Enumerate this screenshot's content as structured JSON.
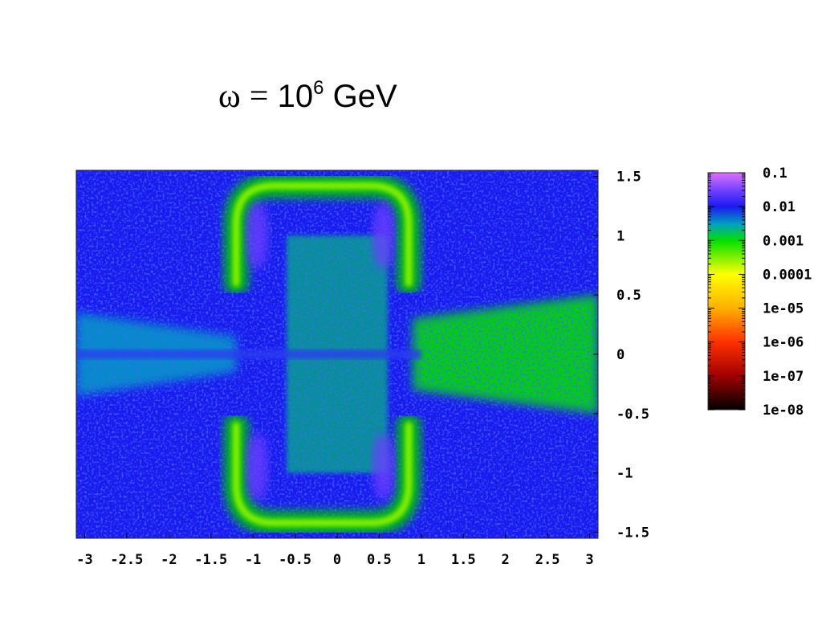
{
  "title": {
    "symbol": "ω",
    "equals": "=",
    "base": "10",
    "exponent": "6",
    "unit": "GeV"
  },
  "chart_data": {
    "type": "heatmap",
    "title": "ω = 10^6 GeV",
    "xlabel": "",
    "ylabel": "",
    "xlim": [
      -3.1,
      3.1
    ],
    "ylim": [
      -1.55,
      1.55
    ],
    "x_ticks": [
      {
        "value": -3,
        "label": "-3"
      },
      {
        "value": -2.5,
        "label": "-2.5"
      },
      {
        "value": -2,
        "label": "-2"
      },
      {
        "value": -1.5,
        "label": "-1.5"
      },
      {
        "value": -1,
        "label": "-1"
      },
      {
        "value": -0.5,
        "label": "-0.5"
      },
      {
        "value": 0,
        "label": "0"
      },
      {
        "value": 0.5,
        "label": "0.5"
      },
      {
        "value": 1,
        "label": "1"
      },
      {
        "value": 1.5,
        "label": "1.5"
      },
      {
        "value": 2,
        "label": "2"
      },
      {
        "value": 2.5,
        "label": "2.5"
      },
      {
        "value": 3,
        "label": "3"
      }
    ],
    "y_ticks": [
      {
        "value": 1.5,
        "label": "1.5"
      },
      {
        "value": 1,
        "label": "1"
      },
      {
        "value": 0.5,
        "label": "0.5"
      },
      {
        "value": 0,
        "label": "0"
      },
      {
        "value": -0.5,
        "label": "-0.5"
      },
      {
        "value": -1,
        "label": "-1"
      },
      {
        "value": -1.5,
        "label": "-1.5"
      }
    ],
    "colorbar": {
      "scale": "log",
      "range": [
        1e-08,
        0.1
      ],
      "ticks": [
        {
          "value": 0.1,
          "label": "0.1"
        },
        {
          "value": 0.01,
          "label": "0.01"
        },
        {
          "value": 0.001,
          "label": "0.001"
        },
        {
          "value": 0.0001,
          "label": "0.0001"
        },
        {
          "value": 1e-05,
          "label": "1e-05"
        },
        {
          "value": 1e-06,
          "label": "1e-06"
        },
        {
          "value": 1e-07,
          "label": "1e-07"
        },
        {
          "value": 1e-08,
          "label": "1e-08"
        }
      ],
      "colormap": [
        {
          "value": 1e-08,
          "color": "#000000"
        },
        {
          "value": 1e-07,
          "color": "#a00000"
        },
        {
          "value": 1e-06,
          "color": "#ff3000"
        },
        {
          "value": 1e-05,
          "color": "#ffb000"
        },
        {
          "value": 0.0001,
          "color": "#ffff00"
        },
        {
          "value": 0.001,
          "color": "#00e000"
        },
        {
          "value": 0.003,
          "color": "#00a0c0"
        },
        {
          "value": 0.01,
          "color": "#1a1af0"
        },
        {
          "value": 0.03,
          "color": "#7040ff"
        },
        {
          "value": 0.1,
          "color": "#e070ff"
        }
      ]
    },
    "features": [
      {
        "description": "upper ring (U-shaped band)",
        "x_range": [
          -1.2,
          0.85
        ],
        "y_top": 1.42,
        "y_mid": 0.6,
        "level": 0.0003
      },
      {
        "description": "lower ring (U-shaped band)",
        "x_range": [
          -1.2,
          0.85
        ],
        "y_bottom": -1.42,
        "y_mid": -0.6,
        "level": 0.0003
      },
      {
        "description": "central speckled region",
        "x_range": [
          -0.6,
          0.6
        ],
        "y_range": [
          -1.0,
          1.0
        ],
        "level": 0.002
      },
      {
        "description": "right speckled fan",
        "x_range": [
          0.9,
          3.1
        ],
        "y_range": [
          -0.5,
          0.5
        ],
        "level": 0.001
      },
      {
        "description": "left speckled fan",
        "x_range": [
          -3.1,
          -1.2
        ],
        "y_range": [
          -0.35,
          0.35
        ],
        "level": 0.003
      },
      {
        "description": "background",
        "level": 0.01
      }
    ]
  }
}
